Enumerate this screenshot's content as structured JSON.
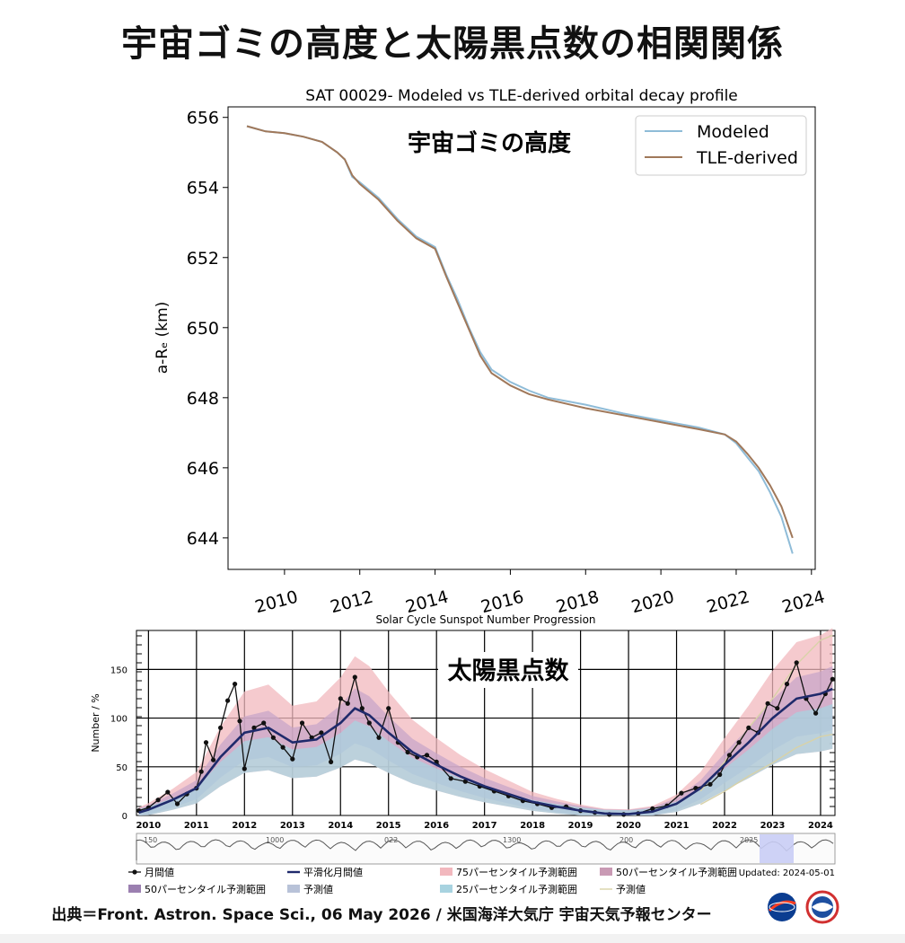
{
  "title": "宇宙ゴミの高度と太陽黒点数の相関関係",
  "footer": "出典＝Front. Astron. Space Sci., 06 May 2026 / 米国海洋大気庁 宇宙天気予報センター",
  "colors": {
    "modeled": "#8fbcd8",
    "tle": "#a0785a",
    "monthly": "#111111",
    "smoothed": "#1f2a6b",
    "p75": "#f2b8be",
    "p50": "#c8a6c8",
    "p25": "#a8d3e0",
    "forecast": "#d8d2a8"
  },
  "chart_data": [
    {
      "type": "line",
      "title": "SAT 00029- Modeled vs TLE-derived orbital decay profile",
      "annotation": "宇宙ゴミの高度",
      "ylabel": "a-Rₑ (km)",
      "xlabel": "",
      "xlim": [
        2008.5,
        2024.1
      ],
      "ylim": [
        643.1,
        656.3
      ],
      "xticks": [
        "2010",
        "2012",
        "2014",
        "2016",
        "2018",
        "2020",
        "2022",
        "2024"
      ],
      "yticks": [
        "644",
        "646",
        "648",
        "650",
        "652",
        "654",
        "656"
      ],
      "legend_position": "top-right",
      "grid": false,
      "series": [
        {
          "name": "Modeled",
          "x": [
            2009.0,
            2009.5,
            2010.0,
            2010.5,
            2011.0,
            2011.4,
            2011.6,
            2011.8,
            2012.0,
            2012.5,
            2013.0,
            2013.5,
            2014.0,
            2014.3,
            2014.6,
            2014.9,
            2015.2,
            2015.5,
            2016.0,
            2016.5,
            2017.0,
            2018.0,
            2019.0,
            2020.0,
            2021.0,
            2021.7,
            2022.0,
            2022.3,
            2022.6,
            2022.9,
            2023.2,
            2023.5
          ],
          "y": [
            655.75,
            655.6,
            655.55,
            655.45,
            655.3,
            655.0,
            654.8,
            654.3,
            654.15,
            653.7,
            653.1,
            652.6,
            652.3,
            651.5,
            650.8,
            650.0,
            649.3,
            648.8,
            648.45,
            648.2,
            648.0,
            647.8,
            647.55,
            647.35,
            647.15,
            646.95,
            646.7,
            646.3,
            645.9,
            645.3,
            644.6,
            643.55
          ]
        },
        {
          "name": "TLE-derived",
          "x": [
            2009.0,
            2009.5,
            2010.0,
            2010.5,
            2011.0,
            2011.4,
            2011.6,
            2011.8,
            2012.0,
            2012.5,
            2013.0,
            2013.5,
            2014.0,
            2014.3,
            2014.6,
            2014.9,
            2015.2,
            2015.5,
            2016.0,
            2016.5,
            2017.0,
            2018.0,
            2019.0,
            2020.0,
            2021.0,
            2021.7,
            2022.0,
            2022.3,
            2022.6,
            2022.9,
            2023.2,
            2023.5
          ],
          "y": [
            655.75,
            655.6,
            655.55,
            655.45,
            655.3,
            655.0,
            654.8,
            654.35,
            654.1,
            653.65,
            653.05,
            652.55,
            652.25,
            651.45,
            650.7,
            649.95,
            649.2,
            648.7,
            648.35,
            648.1,
            647.95,
            647.7,
            647.5,
            647.3,
            647.1,
            646.95,
            646.75,
            646.4,
            646.0,
            645.5,
            644.9,
            644.0
          ]
        }
      ]
    },
    {
      "type": "line",
      "title": "Solar Cycle Sunspot Number Progression",
      "annotation": "太陽黒点数",
      "ylabel": "Number / %",
      "xlabel": "",
      "xlim": [
        2009.75,
        2024.3
      ],
      "ylim": [
        0,
        190
      ],
      "xticks": [
        "2010",
        "2011",
        "2012",
        "2013",
        "2014",
        "2015",
        "2016",
        "2017",
        "2018",
        "2019",
        "2020",
        "2021",
        "2022",
        "2023",
        "2024"
      ],
      "yticks": [
        "0",
        "50",
        "100",
        "150"
      ],
      "grid": true,
      "updated": "Updated: 2024-05-01",
      "overview_labels": [
        "150",
        "1000",
        "022",
        "1300",
        "200",
        "2025"
      ],
      "legend": [
        {
          "name": "月間値",
          "style": "dot-line"
        },
        {
          "name": "平滑化月間値",
          "style": "line"
        },
        {
          "name": "75パーセンタイル予測範囲",
          "style": "swatch-p75"
        },
        {
          "name": "50パーセンタイル予測範囲",
          "style": "swatch-p50a"
        },
        {
          "name": "50パーセンタイル予測範囲",
          "style": "swatch-p50b"
        },
        {
          "name": "予測値",
          "style": "swatch-pred"
        },
        {
          "name": "25パーセンタイル予測範囲",
          "style": "swatch-p25"
        },
        {
          "name": "予測値",
          "style": "thin-line"
        }
      ],
      "series": [
        {
          "name": "月間値",
          "x": [
            2009.8,
            2010.0,
            2010.2,
            2010.4,
            2010.6,
            2010.8,
            2011.0,
            2011.1,
            2011.2,
            2011.35,
            2011.5,
            2011.65,
            2011.8,
            2011.9,
            2012.0,
            2012.2,
            2012.4,
            2012.6,
            2012.8,
            2013.0,
            2013.2,
            2013.4,
            2013.6,
            2013.8,
            2014.0,
            2014.15,
            2014.3,
            2014.45,
            2014.6,
            2014.8,
            2015.0,
            2015.2,
            2015.4,
            2015.6,
            2015.8,
            2016.0,
            2016.3,
            2016.6,
            2016.9,
            2017.2,
            2017.5,
            2017.8,
            2018.1,
            2018.4,
            2018.7,
            2019.0,
            2019.3,
            2019.6,
            2019.9,
            2020.2,
            2020.5,
            2020.8,
            2021.1,
            2021.4,
            2021.7,
            2021.9,
            2022.1,
            2022.3,
            2022.5,
            2022.7,
            2022.9,
            2023.1,
            2023.3,
            2023.5,
            2023.7,
            2023.9,
            2024.1,
            2024.25
          ],
          "y": [
            5,
            8,
            16,
            24,
            12,
            22,
            28,
            45,
            75,
            57,
            90,
            118,
            135,
            97,
            48,
            90,
            95,
            80,
            70,
            58,
            95,
            80,
            85,
            55,
            120,
            115,
            142,
            110,
            95,
            80,
            110,
            75,
            65,
            60,
            62,
            55,
            38,
            35,
            30,
            25,
            20,
            15,
            12,
            8,
            9,
            5,
            3,
            1,
            1,
            2,
            7,
            10,
            23,
            28,
            32,
            42,
            62,
            75,
            90,
            85,
            115,
            110,
            135,
            157,
            120,
            105,
            125,
            140
          ]
        },
        {
          "name": "平滑化月間値",
          "x": [
            2009.8,
            2010.0,
            2010.5,
            2011.0,
            2011.5,
            2012.0,
            2012.5,
            2013.0,
            2013.5,
            2014.0,
            2014.3,
            2014.6,
            2015.0,
            2015.5,
            2016.0,
            2016.5,
            2017.0,
            2017.5,
            2018.0,
            2018.5,
            2019.0,
            2019.5,
            2020.0,
            2020.5,
            2021.0,
            2021.5,
            2022.0,
            2022.5,
            2023.0,
            2023.5,
            2024.0,
            2024.25
          ],
          "y": [
            3,
            6,
            16,
            28,
            60,
            85,
            90,
            75,
            78,
            95,
            110,
            103,
            85,
            65,
            52,
            40,
            30,
            22,
            14,
            9,
            5,
            2,
            1.5,
            4,
            12,
            28,
            52,
            75,
            100,
            120,
            125,
            130
          ]
        },
        {
          "name": "予測値",
          "x": [
            2021.5,
            2022.0,
            2022.5,
            2023.0,
            2023.5,
            2024.0,
            2024.25
          ],
          "y": [
            25,
            55,
            90,
            120,
            155,
            180,
            185
          ]
        }
      ]
    }
  ]
}
